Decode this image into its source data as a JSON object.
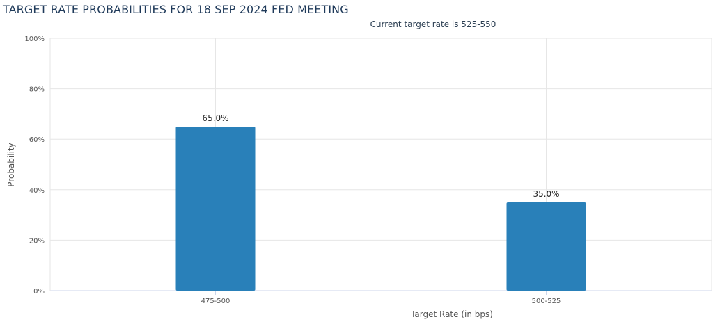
{
  "chart_data": {
    "type": "bar",
    "title": "TARGET RATE PROBABILITIES FOR 18 SEP 2024 FED MEETING",
    "subtitle": "Current target rate is 525-550",
    "xlabel": "Target Rate (in bps)",
    "ylabel": "Probability",
    "categories": [
      "475-500",
      "500-525"
    ],
    "values": [
      65.0,
      35.0
    ],
    "data_labels": [
      "65.0%",
      "35.0%"
    ],
    "ylim": [
      0,
      100
    ],
    "yticks": [
      "0%",
      "20%",
      "40%",
      "60%",
      "80%",
      "100%"
    ],
    "grid": true,
    "colors": {
      "bar": "#2980b9",
      "grid": "#e6e6e6",
      "axis": "#ccd6eb"
    }
  }
}
